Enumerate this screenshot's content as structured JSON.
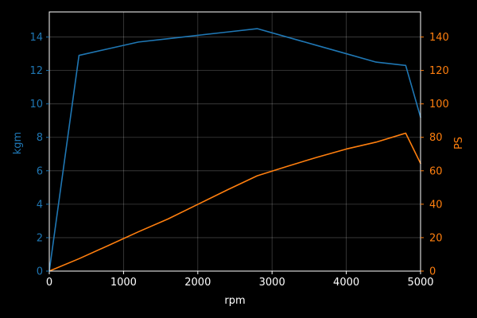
{
  "chart_data": {
    "type": "line",
    "title": "",
    "xlabel": "rpm",
    "ylabel_left": "kgm",
    "ylabel_right": "PS",
    "xlim": [
      0,
      5000
    ],
    "ylim_left": [
      0,
      15.5
    ],
    "ylim_right": [
      0,
      155
    ],
    "x_ticks": [
      0,
      1000,
      2000,
      3000,
      4000,
      5000
    ],
    "y_ticks_left": [
      0,
      2,
      4,
      6,
      8,
      10,
      12,
      14
    ],
    "y_ticks_right": [
      0,
      20,
      40,
      60,
      80,
      100,
      120,
      140
    ],
    "grid": true,
    "background": "#000000",
    "foreground": "#ffffff",
    "series": [
      {
        "axis": "left",
        "color": "#1f77b4",
        "x": [
          0,
          400,
          800,
          1200,
          1600,
          2000,
          2400,
          2800,
          3200,
          3600,
          4000,
          4400,
          4800,
          5000
        ],
        "y": [
          0.0,
          12.9,
          13.3,
          13.7,
          13.9,
          14.1,
          14.3,
          14.5,
          14.0,
          13.5,
          13.0,
          12.5,
          12.3,
          9.2
        ]
      },
      {
        "axis": "right",
        "color": "#ff7f0e",
        "x": [
          0,
          400,
          800,
          1200,
          1600,
          2000,
          2400,
          2800,
          3200,
          3600,
          4000,
          4400,
          4800,
          5000
        ],
        "y": [
          0.0,
          7.4,
          15.4,
          23.5,
          31.2,
          39.9,
          48.6,
          57.0,
          62.6,
          68.0,
          73.0,
          77.1,
          82.5,
          64.4
        ]
      }
    ]
  }
}
